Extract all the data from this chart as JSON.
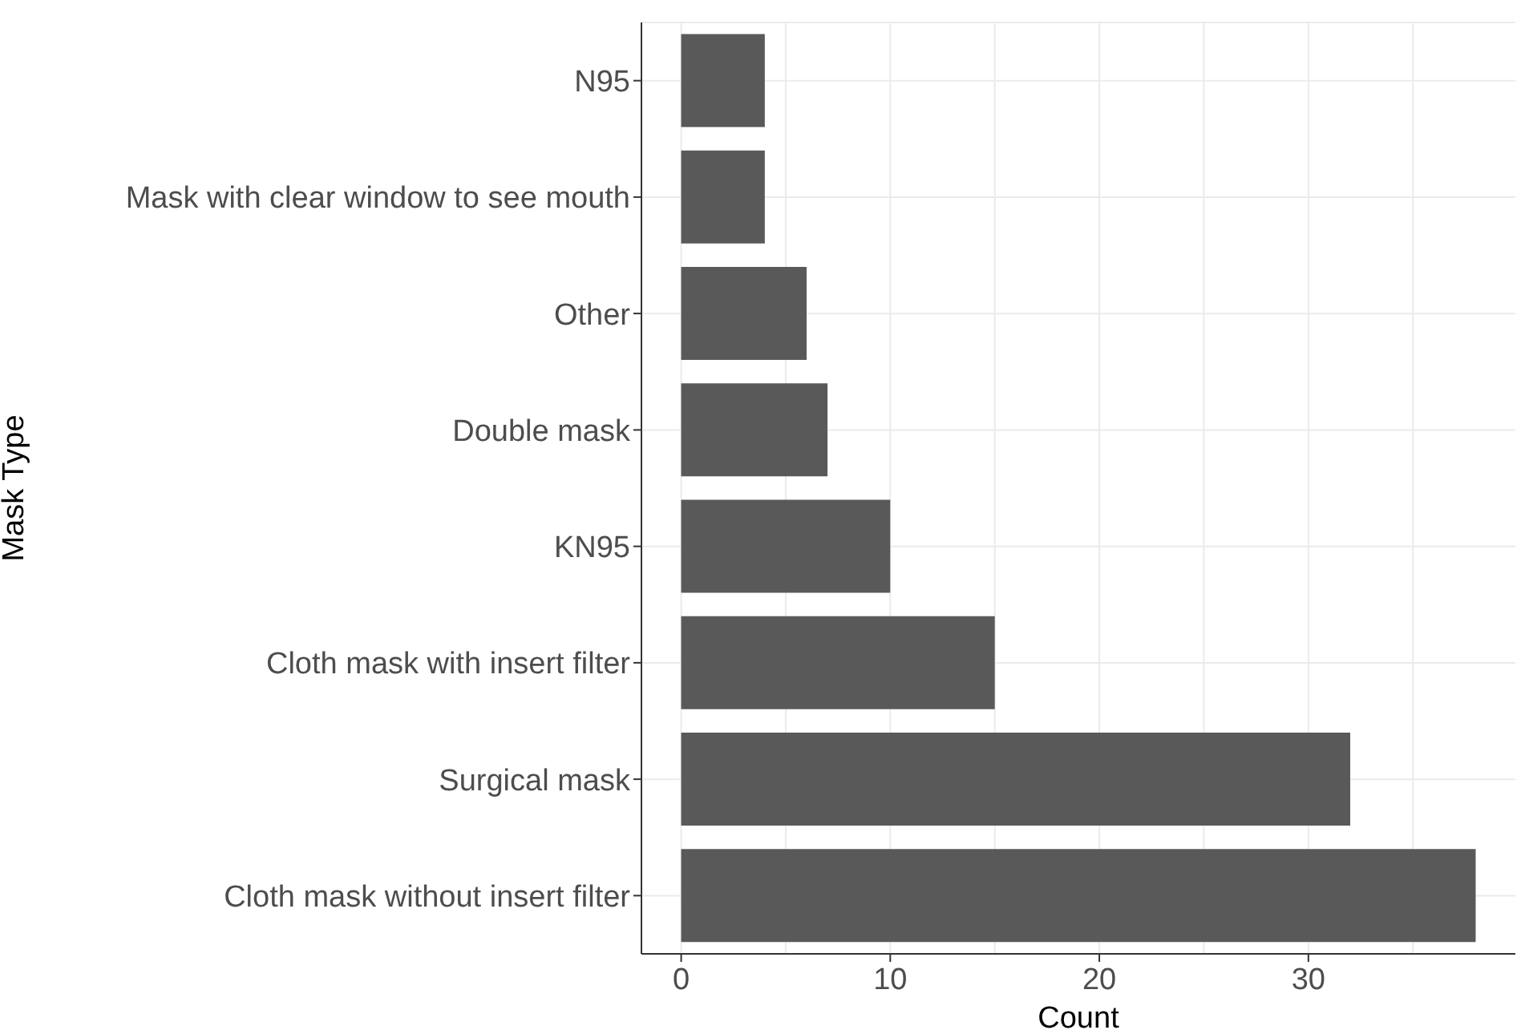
{
  "chart_data": {
    "type": "bar",
    "orientation": "horizontal",
    "xlabel": "Count",
    "ylabel": "Mask Type",
    "categories": [
      "N95",
      "Mask with clear window to see mouth",
      "Other",
      "Double mask",
      "KN95",
      "Cloth mask with insert filter",
      "Surgical mask",
      "Cloth mask without insert filter"
    ],
    "values": [
      4,
      4,
      6,
      7,
      10,
      15,
      32,
      38
    ],
    "color": "#595959",
    "xlim": [
      -1.9,
      39.9
    ],
    "xticks": [
      0,
      {
        "value": 5,
        "label": null
      },
      10,
      {
        "value": 15,
        "label": null
      },
      20,
      {
        "value": 25,
        "label": null
      },
      30,
      {
        "value": 35,
        "label": null
      }
    ],
    "grid": true,
    "legend": false
  }
}
